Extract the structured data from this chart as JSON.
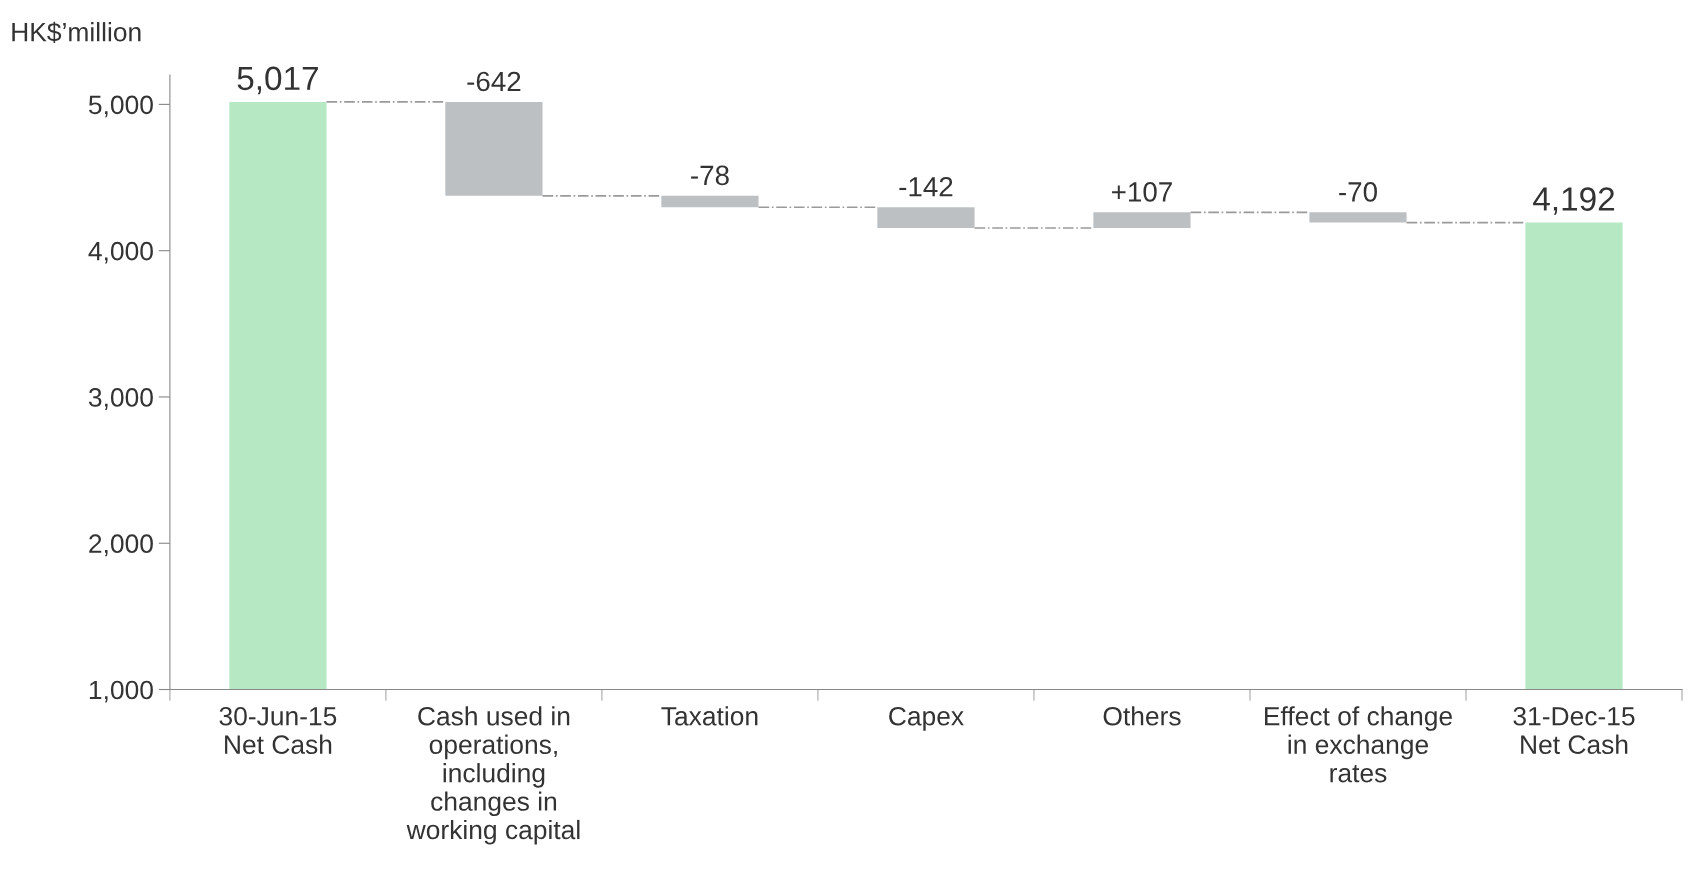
{
  "chart_data": {
    "type": "bar",
    "ylabel": "HK$’million",
    "categories": [
      "30-Jun-15\nNet Cash",
      "Cash used in\noperations,\nincluding\nchanges in\nworking capital",
      "Taxation",
      "Capex",
      "Others",
      "Effect of change\nin exchange\nrates",
      "31-Dec-15\nNet Cash"
    ],
    "values": [
      5017,
      -642,
      -78,
      -142,
      107,
      -70,
      4192
    ],
    "base": [
      null,
      5017,
      4375,
      4297,
      4155,
      4262,
      null
    ],
    "colors": [
      "#b5e8c3",
      "#bdc0c2",
      "#bdc0c2",
      "#bdc0c2",
      "#bdc0c2",
      "#bdc0c2",
      "#b5e8c3"
    ],
    "value_labels": [
      "5,017",
      "-642",
      "-78",
      "-142",
      "+107",
      "-70",
      "4,192"
    ],
    "ylim": [
      1000,
      5200
    ],
    "yticks": [
      {
        "value": 1000,
        "label": "1,000"
      },
      {
        "value": 2000,
        "label": "2,000"
      },
      {
        "value": 3000,
        "label": "3,000"
      },
      {
        "value": 4000,
        "label": "4,000"
      },
      {
        "value": 5000,
        "label": "5,000"
      }
    ],
    "grid": false,
    "legend": false
  }
}
